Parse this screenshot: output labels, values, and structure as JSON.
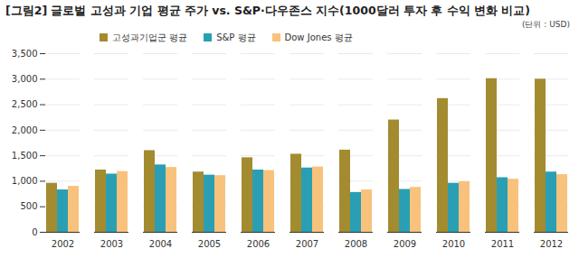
{
  "chart_data": {
    "type": "bar",
    "title": "[그림2] 글로벌 고성과 기업 평균 주가 vs. S&P·다우존스 지수(1000달러 투자 후 수익 변화 비교)",
    "subtitle": "(단위 : USD)",
    "categories": [
      "2002",
      "2003",
      "2004",
      "2005",
      "2006",
      "2007",
      "2008",
      "2009",
      "2010",
      "2011",
      "2012"
    ],
    "series": [
      {
        "name": "고성과기업군 평균",
        "color": "#a38b30",
        "values": [
          960,
          1220,
          1600,
          1180,
          1460,
          1530,
          1610,
          2200,
          2620,
          3010,
          3000
        ]
      },
      {
        "name": "S&P 평균",
        "color": "#2a9fb3",
        "values": [
          830,
          1140,
          1320,
          1120,
          1220,
          1260,
          780,
          840,
          960,
          1070,
          1180
        ]
      },
      {
        "name": "Dow Jones 평균",
        "color": "#f8c27c",
        "values": [
          900,
          1190,
          1270,
          1110,
          1210,
          1280,
          830,
          880,
          990,
          1040,
          1130
        ]
      }
    ],
    "ylim": [
      0,
      3500
    ],
    "yticks": [
      0,
      500,
      {
        "value": 1000,
        "label": "1,000"
      },
      {
        "value": 1500,
        "label": "1,500"
      },
      {
        "value": 2000,
        "label": "2,000"
      },
      {
        "value": 2500,
        "label": "2,500"
      },
      {
        "value": 3000,
        "label": "3,000"
      },
      {
        "value": 3500,
        "label": "3,500"
      }
    ],
    "grid": true,
    "legend": "top-left"
  }
}
